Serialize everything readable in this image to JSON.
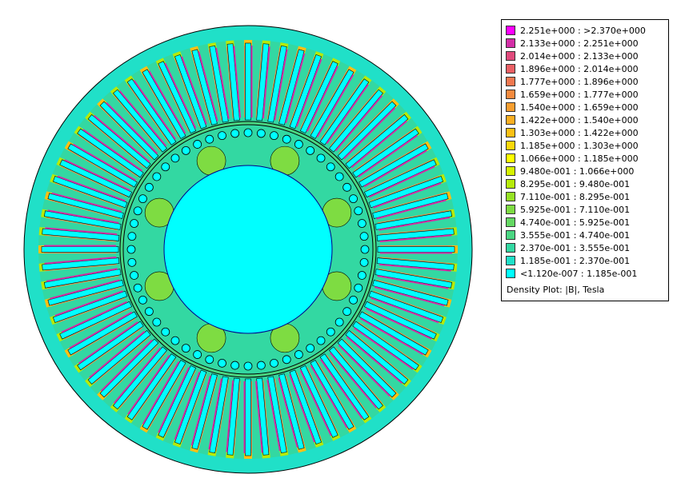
{
  "legend": {
    "title": "Density Plot: |B|, Tesla",
    "entries": [
      {
        "label": "2.251e+000 : >2.370e+000",
        "color": "#ff00ff"
      },
      {
        "label": "2.133e+000 : 2.251e+000",
        "color": "#d22ea6"
      },
      {
        "label": "2.014e+000 : 2.133e+000",
        "color": "#e04a7c"
      },
      {
        "label": "1.896e+000 : 2.014e+000",
        "color": "#ea5f64"
      },
      {
        "label": "1.777e+000 : 1.896e+000",
        "color": "#f07850"
      },
      {
        "label": "1.659e+000 : 1.777e+000",
        "color": "#f48a3e"
      },
      {
        "label": "1.540e+000 : 1.659e+000",
        "color": "#f79e30"
      },
      {
        "label": "1.422e+000 : 1.540e+000",
        "color": "#faaf22"
      },
      {
        "label": "1.303e+000 : 1.422e+000",
        "color": "#fcc014"
      },
      {
        "label": "1.185e+000 : 1.303e+000",
        "color": "#fdd80a"
      },
      {
        "label": "1.066e+000 : 1.185e+000",
        "color": "#ffff00"
      },
      {
        "label": "9.480e-001 : 1.066e+000",
        "color": "#d6f200"
      },
      {
        "label": "8.295e-001 : 9.480e-001",
        "color": "#b6ea0a"
      },
      {
        "label": "7.110e-001 : 8.295e-001",
        "color": "#96e224"
      },
      {
        "label": "5.925e-001 : 7.110e-001",
        "color": "#7edc42"
      },
      {
        "label": "4.740e-001 : 5.925e-001",
        "color": "#64d862"
      },
      {
        "label": "3.555e-001 : 4.740e-001",
        "color": "#4ad682"
      },
      {
        "label": "2.370e-001 : 3.555e-001",
        "color": "#33d8a2"
      },
      {
        "label": "1.185e-001 : 2.370e-001",
        "color": "#20e0c8"
      },
      {
        "label": "<1.120e-007 : 1.185e-001",
        "color": "#00ffff"
      }
    ]
  }
}
